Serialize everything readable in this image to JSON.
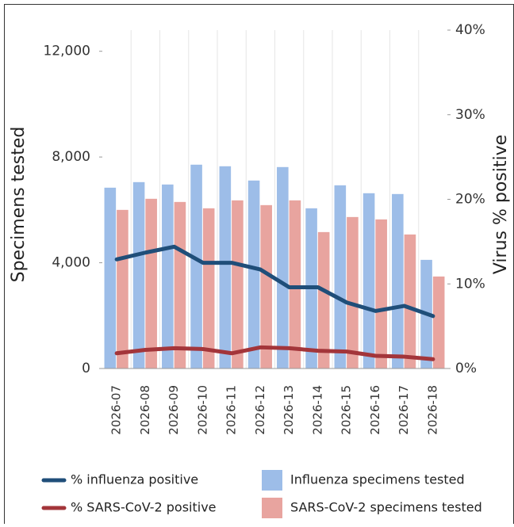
{
  "chart_data": {
    "type": "combo",
    "y_label": "Specimens tested",
    "y2_label": "Virus % positive",
    "categories": [
      "2026-07",
      "2026-08",
      "2026-09",
      "2026-10",
      "2026-11",
      "2026-12",
      "2026-13",
      "2026-14",
      "2026-15",
      "2026-16",
      "2026-17",
      "2026-18"
    ],
    "ylim": [
      0,
      12800
    ],
    "yticks": [
      0,
      {
        "value": 4000,
        "label": "4,000"
      },
      {
        "value": 8000,
        "label": "8,000"
      },
      {
        "value": 12000,
        "label": "12,000"
      }
    ],
    "y2lim": [
      0,
      40
    ],
    "y2ticks": [
      {
        "value": 0,
        "label": "0%"
      },
      {
        "value": 10,
        "label": "10%"
      },
      {
        "value": 20,
        "label": "20%"
      },
      {
        "value": 30,
        "label": "30%"
      },
      {
        "value": 40,
        "label": "40%"
      }
    ],
    "series": [
      {
        "name": "% influenza positive",
        "type": "line",
        "axis": "y2",
        "color": "#1f4e79",
        "values": [
          12.9,
          13.7,
          14.4,
          12.5,
          12.5,
          11.7,
          9.6,
          9.6,
          7.8,
          6.8,
          7.4,
          6.2
        ]
      },
      {
        "name": "% SARS-CoV-2 positive",
        "type": "line",
        "axis": "y2",
        "color": "#a3353a",
        "values": [
          1.8,
          2.2,
          2.4,
          2.3,
          1.8,
          2.5,
          2.4,
          2.1,
          2.0,
          1.5,
          1.4,
          1.1
        ]
      },
      {
        "name": "Influenza specimens tested",
        "type": "bar",
        "color": "#9dbde8",
        "values": [
          6840,
          7050,
          6960,
          7710,
          7650,
          7110,
          7620,
          6060,
          6930,
          6630,
          6600,
          4110
        ]
      },
      {
        "name": "SARS-CoV-2 specimens tested",
        "type": "bar",
        "color": "#e8a49f",
        "values": [
          6000,
          6420,
          6300,
          6060,
          6360,
          6180,
          6360,
          5160,
          5730,
          5640,
          5070,
          3480
        ]
      }
    ]
  }
}
